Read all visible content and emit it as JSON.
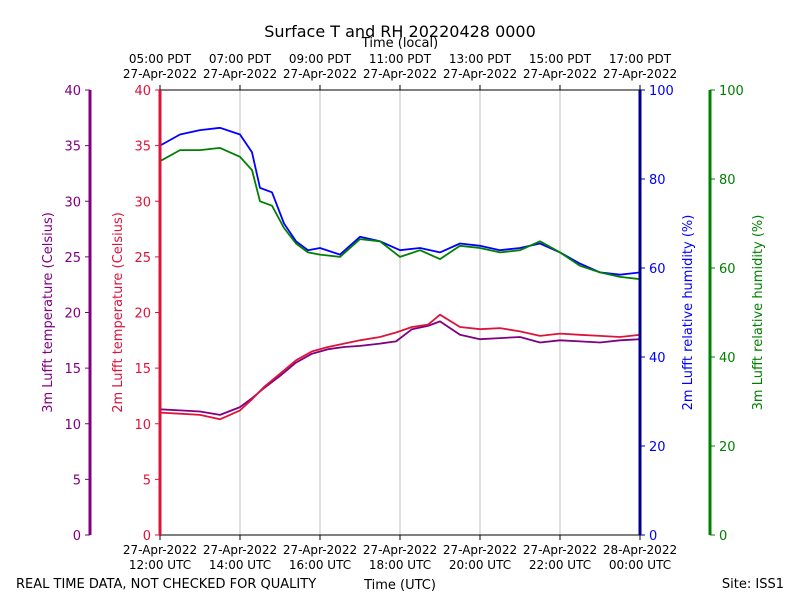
{
  "chart_data": {
    "type": "line",
    "title": "Surface T and RH 20220428 0000",
    "top_axis_label": "Time (local)",
    "xlabel": "Time (UTC)",
    "footer_left": "REAL TIME DATA, NOT CHECKED FOR QUALITY",
    "footer_right": "Site: ISS1",
    "x_range_hours_utc": [
      12,
      24
    ],
    "bottom_ticks": [
      {
        "hour": 12,
        "date": "27-Apr-2022",
        "time": "12:00 UTC"
      },
      {
        "hour": 14,
        "date": "27-Apr-2022",
        "time": "14:00 UTC"
      },
      {
        "hour": 16,
        "date": "27-Apr-2022",
        "time": "16:00 UTC"
      },
      {
        "hour": 18,
        "date": "27-Apr-2022",
        "time": "18:00 UTC"
      },
      {
        "hour": 20,
        "date": "27-Apr-2022",
        "time": "20:00 UTC"
      },
      {
        "hour": 22,
        "date": "27-Apr-2022",
        "time": "22:00 UTC"
      },
      {
        "hour": 24,
        "date": "28-Apr-2022",
        "time": "00:00 UTC"
      }
    ],
    "top_ticks": [
      {
        "hour": 12,
        "time": "05:00 PDT",
        "date": "27-Apr-2022"
      },
      {
        "hour": 14,
        "time": "07:00 PDT",
        "date": "27-Apr-2022"
      },
      {
        "hour": 16,
        "time": "09:00 PDT",
        "date": "27-Apr-2022"
      },
      {
        "hour": 18,
        "time": "11:00 PDT",
        "date": "27-Apr-2022"
      },
      {
        "hour": 20,
        "time": "13:00 PDT",
        "date": "27-Apr-2022"
      },
      {
        "hour": 22,
        "time": "15:00 PDT",
        "date": "27-Apr-2022"
      },
      {
        "hour": 24,
        "time": "17:00 PDT",
        "date": "27-Apr-2022"
      }
    ],
    "axes": [
      {
        "id": "t3m",
        "label": "3m Lufft temperature (Celsius)",
        "color": "#800080",
        "range": [
          0,
          40
        ],
        "ticks": [
          0,
          5,
          10,
          15,
          20,
          25,
          30,
          35,
          40
        ],
        "side": "left-outer"
      },
      {
        "id": "t2m",
        "label": "2m Lufft temperature (Celsius)",
        "color": "#dc143c",
        "range": [
          0,
          40
        ],
        "ticks": [
          0,
          5,
          10,
          15,
          20,
          25,
          30,
          35,
          40
        ],
        "side": "left-inner"
      },
      {
        "id": "rh2m",
        "label": "2m Lufft relative humidity (%)",
        "color": "#0000ff",
        "spine_color": "#00008b",
        "range": [
          0,
          100
        ],
        "ticks": [
          0,
          20,
          40,
          60,
          80,
          100
        ],
        "side": "right-inner"
      },
      {
        "id": "rh3m",
        "label": "3m Lufft relative humidity (%)",
        "color": "#008000",
        "range": [
          0,
          100
        ],
        "ticks": [
          0,
          20,
          40,
          60,
          80,
          100
        ],
        "side": "right-outer"
      }
    ],
    "series": [
      {
        "name": "3m Lufft temperature",
        "axis": "t3m",
        "color": "#800080",
        "x": [
          12.0,
          12.5,
          13.0,
          13.5,
          14.0,
          14.3,
          14.6,
          15.0,
          15.4,
          15.8,
          16.2,
          16.6,
          17.0,
          17.5,
          17.9,
          18.3,
          18.7,
          19.0,
          19.5,
          20.0,
          20.5,
          21.0,
          21.5,
          22.0,
          22.5,
          23.0,
          23.5,
          24.0
        ],
        "values": [
          11.3,
          11.2,
          11.1,
          10.8,
          11.5,
          12.3,
          13.2,
          14.3,
          15.5,
          16.3,
          16.7,
          16.9,
          17.0,
          17.2,
          17.4,
          18.5,
          18.8,
          19.2,
          18.0,
          17.6,
          17.7,
          17.8,
          17.3,
          17.5,
          17.4,
          17.3,
          17.5,
          17.6
        ]
      },
      {
        "name": "2m Lufft temperature",
        "axis": "t2m",
        "color": "#dc143c",
        "x": [
          12.0,
          12.5,
          13.0,
          13.5,
          14.0,
          14.3,
          14.6,
          15.0,
          15.4,
          15.8,
          16.2,
          16.6,
          17.0,
          17.5,
          17.9,
          18.3,
          18.7,
          19.0,
          19.5,
          20.0,
          20.5,
          21.0,
          21.5,
          22.0,
          22.5,
          23.0,
          23.5,
          24.0
        ],
        "values": [
          11.0,
          10.9,
          10.8,
          10.4,
          11.2,
          12.2,
          13.3,
          14.5,
          15.7,
          16.5,
          16.9,
          17.2,
          17.5,
          17.8,
          18.2,
          18.7,
          18.9,
          19.8,
          18.7,
          18.5,
          18.6,
          18.3,
          17.9,
          18.1,
          18.0,
          17.9,
          17.8,
          18.0
        ]
      },
      {
        "name": "2m Lufft relative humidity",
        "axis": "rh2m",
        "color": "#0000ff",
        "x": [
          12.0,
          12.5,
          13.0,
          13.5,
          14.0,
          14.3,
          14.5,
          14.8,
          15.1,
          15.4,
          15.7,
          16.0,
          16.5,
          17.0,
          17.5,
          18.0,
          18.5,
          19.0,
          19.5,
          20.0,
          20.5,
          21.0,
          21.5,
          22.0,
          22.5,
          23.0,
          23.5,
          24.0
        ],
        "values": [
          87.5,
          90.0,
          91.0,
          91.5,
          90.0,
          86.0,
          78.0,
          77.0,
          70.0,
          66.0,
          64.0,
          64.5,
          63.0,
          67.0,
          66.0,
          64.0,
          64.5,
          63.5,
          65.5,
          65.0,
          64.0,
          64.5,
          65.5,
          63.5,
          61.0,
          59.0,
          58.5,
          59.0
        ]
      },
      {
        "name": "3m Lufft relative humidity",
        "axis": "rh3m",
        "color": "#008000",
        "x": [
          12.0,
          12.5,
          13.0,
          13.5,
          14.0,
          14.3,
          14.5,
          14.8,
          15.1,
          15.4,
          15.7,
          16.0,
          16.5,
          17.0,
          17.5,
          18.0,
          18.5,
          19.0,
          19.5,
          20.0,
          20.5,
          21.0,
          21.5,
          22.0,
          22.5,
          23.0,
          23.5,
          24.0
        ],
        "values": [
          84.0,
          86.5,
          86.5,
          87.0,
          85.0,
          82.0,
          75.0,
          74.0,
          69.0,
          65.5,
          63.5,
          63.0,
          62.5,
          66.5,
          66.0,
          62.5,
          64.0,
          62.0,
          65.0,
          64.5,
          63.5,
          64.0,
          66.0,
          63.5,
          60.5,
          59.0,
          58.0,
          57.5
        ]
      }
    ]
  }
}
